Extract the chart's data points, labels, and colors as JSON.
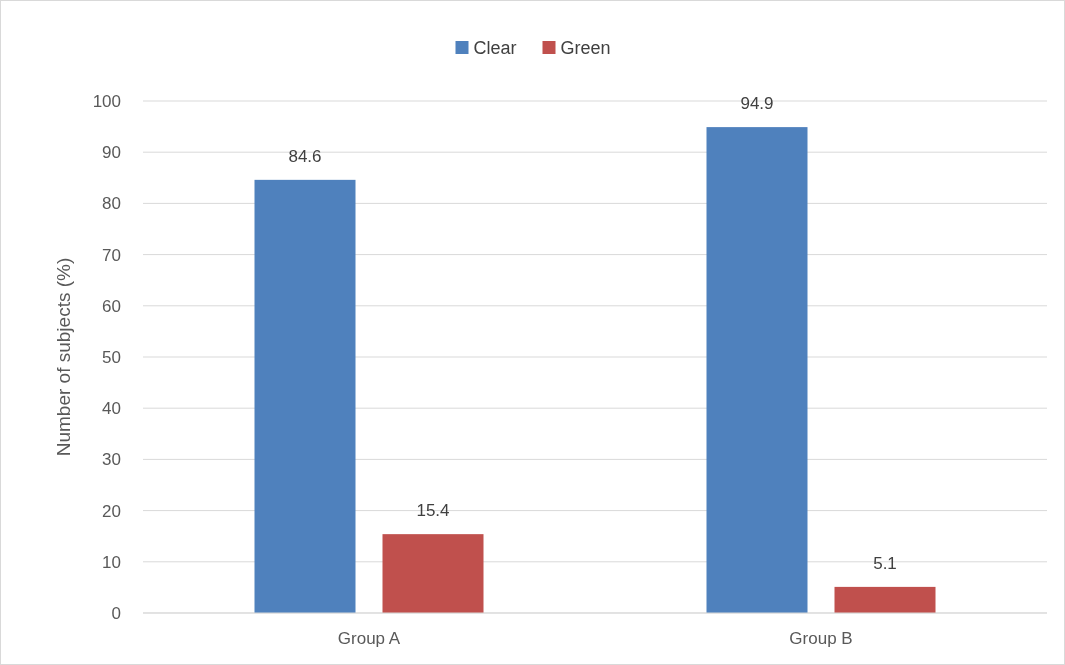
{
  "chart_data": {
    "type": "bar",
    "ylabel": "Number of subjects (%)",
    "categories": [
      "Group A",
      "Group B"
    ],
    "series": [
      {
        "name": "Clear",
        "color": "#4f81bd",
        "values": [
          84.6,
          94.9
        ]
      },
      {
        "name": "Green",
        "color": "#c0504d",
        "values": [
          15.4,
          5.1
        ]
      }
    ],
    "ylim": [
      0,
      100
    ],
    "yticks": [
      0,
      10,
      20,
      30,
      40,
      50,
      60,
      70,
      80,
      90,
      100
    ],
    "grid": "y",
    "legend": "top",
    "data_labels": true
  }
}
